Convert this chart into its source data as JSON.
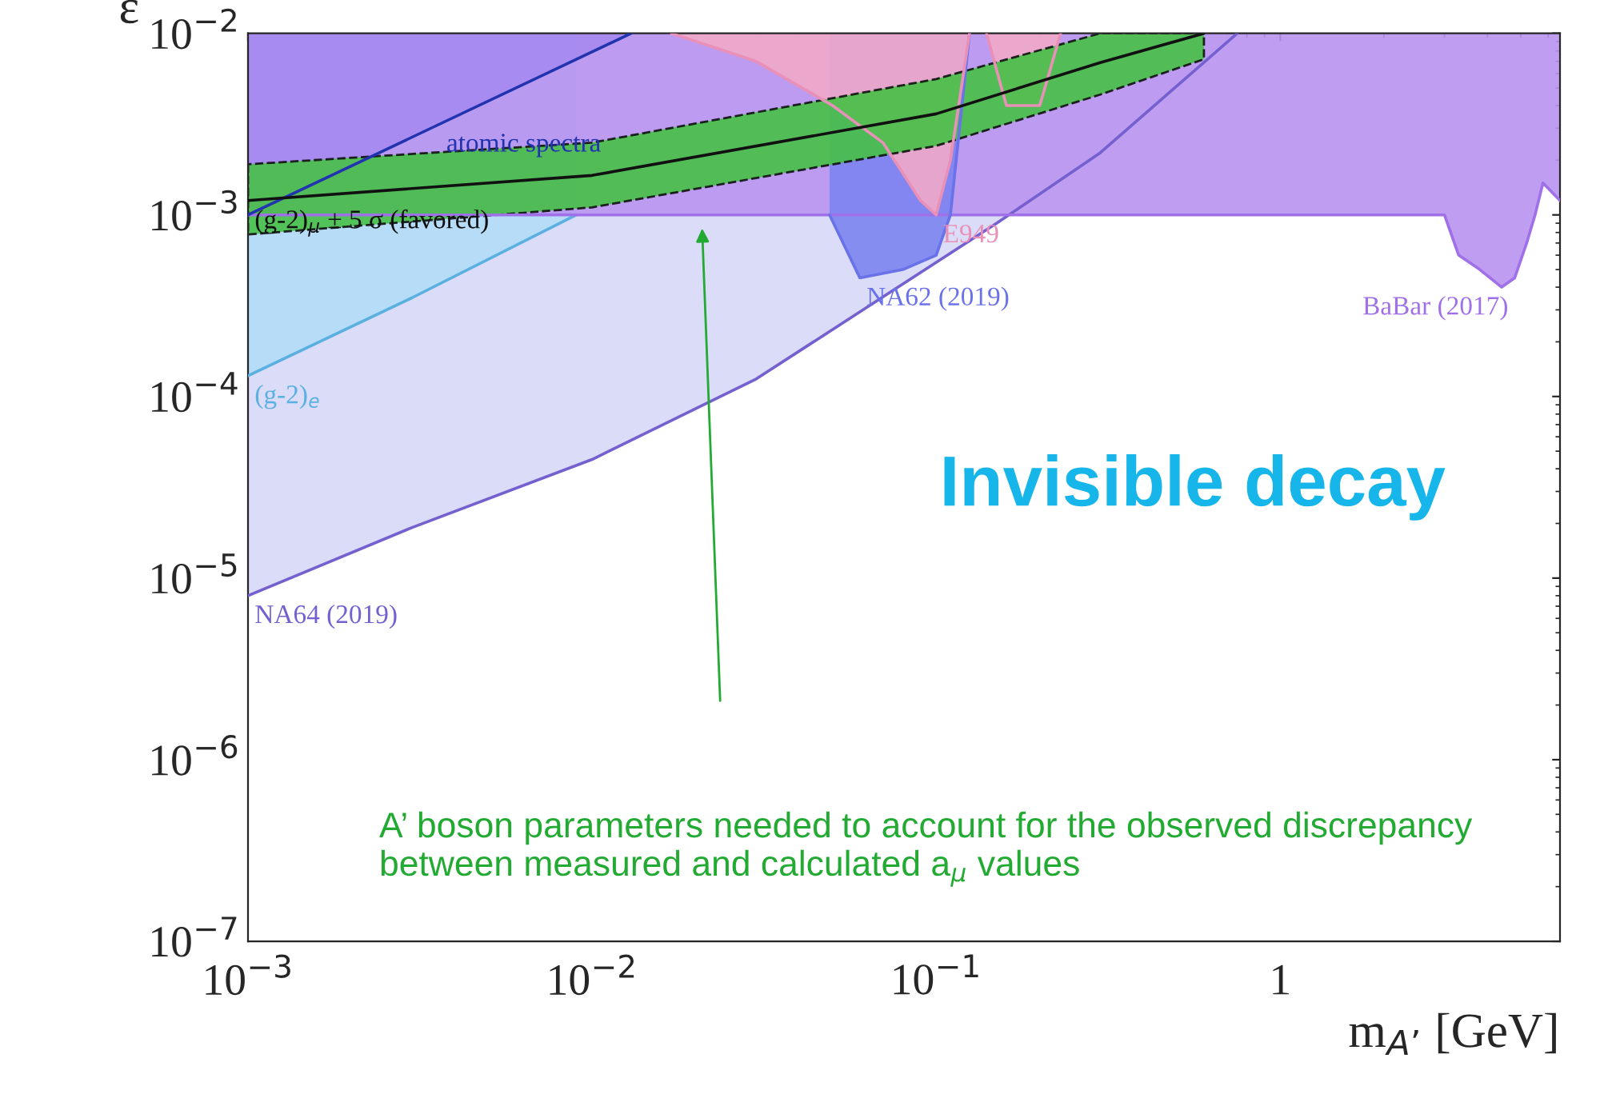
{
  "chart_data": {
    "type": "line",
    "xlabel": "m$_{A’}$ [GeV]",
    "ylabel": "ε",
    "log": "xy",
    "grid": false,
    "legend": false,
    "xlim": [
      0.001,
      6.5
    ],
    "ylim": [
      1e-07,
      0.01
    ],
    "xticks": [
      {
        "value": 0.001,
        "label": "10$^{−3}$"
      },
      {
        "value": 0.01,
        "label": "10$^{−2}$"
      },
      {
        "value": 0.1,
        "label": "10$^{−1}$"
      },
      1
    ],
    "yticks": [
      {
        "value": 1e-07,
        "label": "10$^{−7}$"
      },
      {
        "value": 1e-06,
        "label": "10$^{−6}$"
      },
      {
        "value": 1e-05,
        "label": "10$^{−5}$"
      },
      {
        "value": 0.0001,
        "label": "10$^{−4}$"
      },
      {
        "value": 0.001,
        "label": "10$^{−3}$"
      },
      {
        "value": 0.01,
        "label": "10$^{−2}$"
      }
    ],
    "series": [
      {
        "name": "NA64 (2019)",
        "color": "#7560d0",
        "x": [
          0.001,
          0.003,
          0.01,
          0.03,
          0.15,
          0.3,
          0.75
        ],
        "values": [
          8e-06,
          1.9e-05,
          4.5e-05,
          0.000125,
          0.0009,
          0.0022,
          0.01
        ],
        "lower": [
          8e-06,
          1.9e-05,
          4.5e-05,
          0.000125,
          0.0009,
          0.0022,
          0.01
        ],
        "upper": [
          0.01,
          0.01,
          0.01,
          0.01,
          0.01,
          0.01,
          0.01
        ]
      },
      {
        "name": "(g-2)$_{e}$",
        "color": "#5ab0e0",
        "x": [
          0.001,
          0.003,
          0.009
        ],
        "values": [
          0.00013,
          0.00035,
          0.001
        ],
        "lower": [
          0.00013,
          0.00035,
          0.001
        ],
        "upper": [
          0.01,
          0.01,
          0.01
        ]
      },
      {
        "name": "BaBar (2017)",
        "color": "#a070e8",
        "x": [
          0.001,
          0.2,
          0.5,
          1,
          1.5,
          2,
          2.5,
          3,
          3.3,
          3.8,
          4.4,
          4.8,
          5.2,
          5.5,
          5.8,
          6.5
        ],
        "values": [
          0.001,
          0.001,
          0.001,
          0.001,
          0.001,
          0.001,
          0.001,
          0.001,
          0.0006,
          0.0005,
          0.0004,
          0.00045,
          0.0007,
          0.001,
          0.0015,
          0.0012
        ],
        "lower": [
          0.001,
          0.001,
          0.001,
          0.001,
          0.001,
          0.001,
          0.001,
          0.001,
          0.0006,
          0.0005,
          0.0004,
          0.00045,
          0.0007,
          0.001,
          0.0015,
          0.0012
        ],
        "upper": [
          0.01,
          0.01,
          0.01,
          0.01,
          0.01,
          0.01,
          0.01,
          0.01,
          0.01,
          0.01,
          0.01,
          0.01,
          0.01,
          0.01,
          0.01,
          0.01
        ]
      },
      {
        "name": "atomic spectra",
        "color": "#2233b0",
        "x": [
          0.001,
          0.013
        ],
        "values": [
          0.001,
          0.01
        ],
        "lower": [
          0.001,
          0.01
        ],
        "upper": [
          0.01,
          0.01
        ]
      },
      {
        "name": "NA62 (2019)",
        "color": "#6a72ea",
        "x": [
          0.049,
          0.06,
          0.08,
          0.1,
          0.11,
          0.125
        ],
        "values": [
          0.001,
          0.00045,
          0.0005,
          0.0006,
          0.001,
          0.01
        ],
        "lower": [
          0.001,
          0.00045,
          0.0005,
          0.0006,
          0.001,
          0.01
        ],
        "upper": [
          0.01,
          0.01,
          0.01,
          0.01,
          0.01,
          0.01
        ]
      },
      {
        "name": "E949",
        "color": "#e890b8",
        "x": [
          0.017,
          0.03,
          0.05,
          0.07,
          0.09,
          0.1,
          0.11,
          0.125
        ],
        "values": [
          0.01,
          0.007,
          0.004,
          0.0025,
          0.0012,
          0.001,
          0.002,
          0.01
        ],
        "lower": [
          0.01,
          0.007,
          0.004,
          0.0025,
          0.0012,
          0.001,
          0.002,
          0.01
        ],
        "upper": [
          0.01,
          0.01,
          0.01,
          0.01,
          0.01,
          0.01,
          0.01,
          0.01
        ]
      },
      {
        "color": "#e890b8",
        "x": [
          0.14,
          0.16,
          0.2,
          0.23
        ],
        "values": [
          0.01,
          0.004,
          0.004,
          0.01
        ],
        "lower": [
          0.01,
          0.004,
          0.004,
          0.01
        ],
        "upper": [
          0.01,
          0.01,
          0.01,
          0.01
        ]
      },
      {
        "name": "(g-2)$_{μ}$ ± 5 σ (favored)",
        "color": "#111111",
        "x": [
          0.001,
          0.01,
          0.1,
          0.3,
          0.6
        ],
        "values": [
          0.0012,
          0.00165,
          0.0036,
          0.0069,
          0.01
        ],
        "lower": [
          0.00078,
          0.0011,
          0.0024,
          0.0046,
          0.0072
        ],
        "upper": [
          0.0019,
          0.0025,
          0.0056,
          0.01,
          0.01
        ]
      }
    ],
    "annotations": [
      "Invisible decay",
      "A’ boson parameters needed to account for the observed discrepancy between measured and calculated a$_{μ}$ values"
    ]
  }
}
